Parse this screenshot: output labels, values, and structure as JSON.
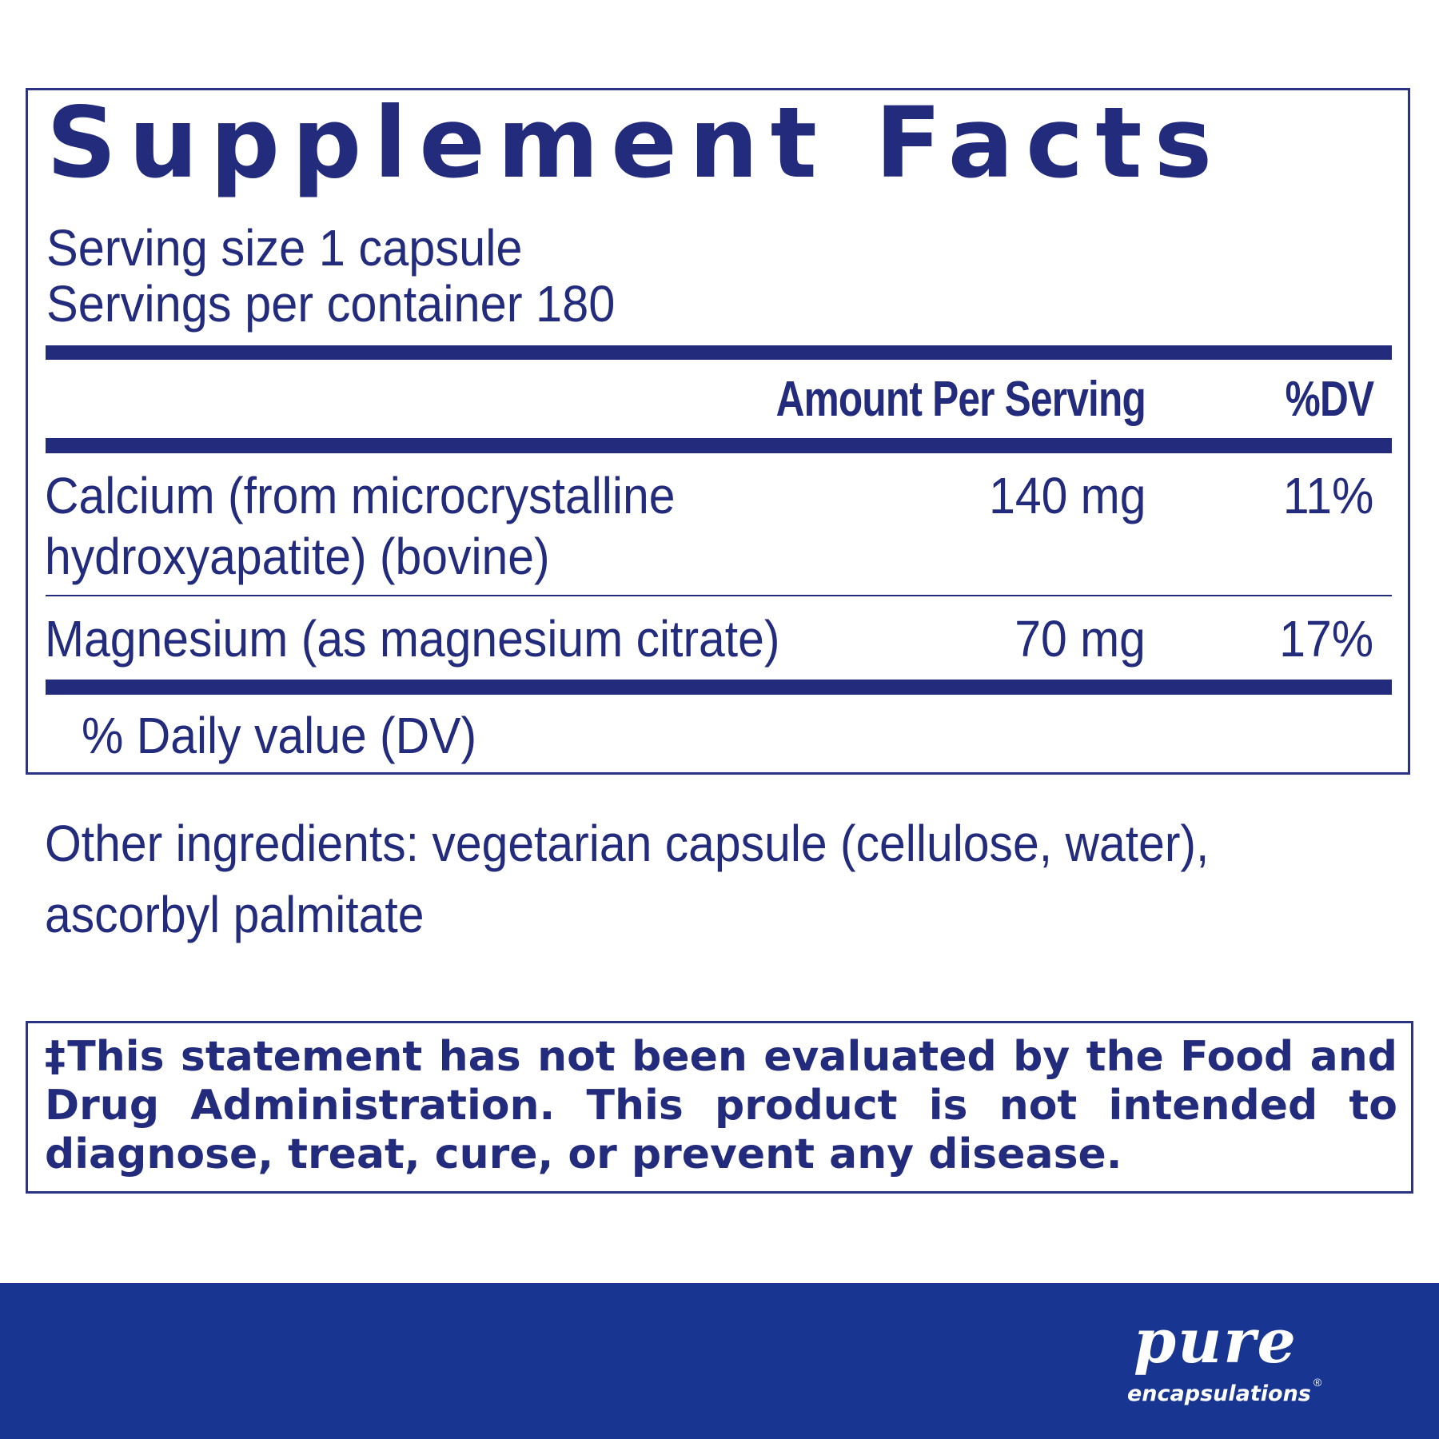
{
  "title": "Supplement Facts",
  "serving_size": "Serving size  1 capsule",
  "servings_per_container": "Servings per container  180",
  "header": {
    "amount": "Amount Per Serving",
    "dv": "%DV"
  },
  "nutrients": [
    {
      "name_line1": "Calcium (from microcrystalline",
      "name_line2": "hydroxyapatite) (bovine)",
      "amount": "140 mg",
      "dv": "11%"
    },
    {
      "name_line1": "Magnesium (as magnesium citrate)",
      "amount": "70 mg",
      "dv": "17%"
    }
  ],
  "dv_note": "% Daily value (DV)",
  "other_ingredients": {
    "line1": "Other ingredients: vegetarian capsule (cellulose, water),",
    "line2": "ascorbyl palmitate"
  },
  "disclaimer": {
    "line1": "‡This statement has not been evaluated by the Food and",
    "line2": "Drug Administration. This product is not intended to",
    "line3": "diagnose, treat, cure, or prevent any disease."
  },
  "logo": {
    "brand": "pure",
    "sub": "encapsulations",
    "reg": "®"
  },
  "colors": {
    "text": "#232b7c",
    "footer": "#173591"
  }
}
